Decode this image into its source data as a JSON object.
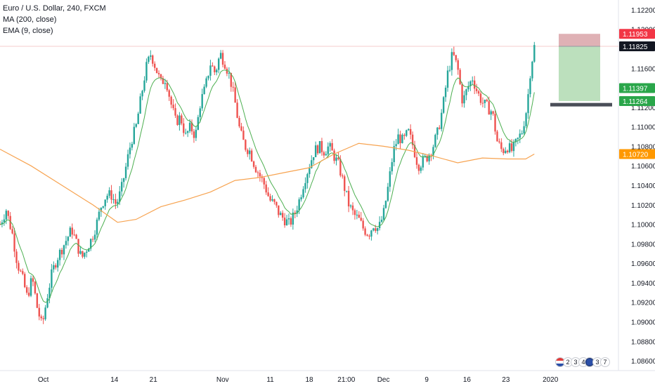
{
  "legend": {
    "symbol": "Euro / U.S. Dollar, 240, FXCM",
    "ma": "MA (200, close)",
    "ema": "EMA (9, close)"
  },
  "colors": {
    "up": "#26a69a",
    "down": "#ef5350",
    "ma": "#f7a350",
    "ema": "#4caf50",
    "stop_zone": "#d9a3a8",
    "target_zone": "#a5d6a7",
    "price_line": "#e57373"
  },
  "events": {
    "group1": [
      "2",
      "3",
      "4"
    ],
    "group2": [
      "3",
      "7"
    ]
  },
  "chart_data": {
    "type": "candlestick",
    "title": "Euro / U.S. Dollar, 240, FXCM",
    "ylim": [
      1.085,
      1.123
    ],
    "y_ticks": [
      "1.12200",
      "1.12000",
      "1.11600",
      "1.11400",
      "1.11200",
      "1.11000",
      "1.10800",
      "1.10600",
      "1.10400",
      "1.10200",
      "1.10000",
      "1.09800",
      "1.09600",
      "1.09400",
      "1.09200",
      "1.09000",
      "1.08800",
      "1.08600"
    ],
    "x_ticks": [
      {
        "label": "Oct",
        "t": 0.07
      },
      {
        "label": "14",
        "t": 0.185
      },
      {
        "label": "21",
        "t": 0.248
      },
      {
        "label": "Nov",
        "t": 0.36
      },
      {
        "label": "11",
        "t": 0.437
      },
      {
        "label": "18",
        "t": 0.5
      },
      {
        "label": "21:00",
        "t": 0.56
      },
      {
        "label": "Dec",
        "t": 0.62
      },
      {
        "label": "9",
        "t": 0.69
      },
      {
        "label": "16",
        "t": 0.755
      },
      {
        "label": "23",
        "t": 0.818
      },
      {
        "label": "2020",
        "t": 0.89
      }
    ],
    "price_labels": [
      {
        "value": "1.11953",
        "color": "#f23645",
        "y": 1.11953
      },
      {
        "value": "1.11825",
        "color": "#131722",
        "y": 1.11825
      },
      {
        "value": "1.11397",
        "color": "#2aa64a",
        "y": 1.11397
      },
      {
        "value": "1.11264",
        "color": "#2aa64a",
        "y": 1.11264
      },
      {
        "value": "1.10720",
        "color": "#ff9800",
        "y": 1.1072
      }
    ],
    "current_price": 1.11825,
    "trade": {
      "entry": 1.11825,
      "stop": 1.11953,
      "target": 1.11264,
      "support": 1.1123
    },
    "path": [
      [
        0.0,
        1.1
      ],
      [
        0.01,
        1.1015
      ],
      [
        0.02,
        1.099
      ],
      [
        0.028,
        1.096
      ],
      [
        0.036,
        1.0945
      ],
      [
        0.044,
        1.0925
      ],
      [
        0.052,
        1.0945
      ],
      [
        0.06,
        1.0915
      ],
      [
        0.068,
        1.0895
      ],
      [
        0.076,
        1.0925
      ],
      [
        0.084,
        1.095
      ],
      [
        0.092,
        1.0965
      ],
      [
        0.1,
        1.0975
      ],
      [
        0.108,
        1.0985
      ],
      [
        0.116,
        1.0995
      ],
      [
        0.124,
        1.098
      ],
      [
        0.132,
        1.0965
      ],
      [
        0.14,
        1.0975
      ],
      [
        0.148,
        1.0985
      ],
      [
        0.156,
        1.1
      ],
      [
        0.164,
        1.102
      ],
      [
        0.172,
        1.103
      ],
      [
        0.18,
        1.103
      ],
      [
        0.188,
        1.102
      ],
      [
        0.196,
        1.1035
      ],
      [
        0.204,
        1.106
      ],
      [
        0.212,
        1.1085
      ],
      [
        0.22,
        1.11
      ],
      [
        0.228,
        1.113
      ],
      [
        0.236,
        1.116
      ],
      [
        0.244,
        1.1175
      ],
      [
        0.252,
        1.116
      ],
      [
        0.26,
        1.1145
      ],
      [
        0.268,
        1.115
      ],
      [
        0.276,
        1.1125
      ],
      [
        0.284,
        1.1105
      ],
      [
        0.292,
        1.111
      ],
      [
        0.3,
        1.109
      ],
      [
        0.308,
        1.11
      ],
      [
        0.316,
        1.109
      ],
      [
        0.324,
        1.1125
      ],
      [
        0.332,
        1.114
      ],
      [
        0.34,
        1.1165
      ],
      [
        0.348,
        1.1155
      ],
      [
        0.356,
        1.1175
      ],
      [
        0.364,
        1.1165
      ],
      [
        0.372,
        1.115
      ],
      [
        0.38,
        1.1125
      ],
      [
        0.388,
        1.1095
      ],
      [
        0.396,
        1.108
      ],
      [
        0.404,
        1.1075
      ],
      [
        0.412,
        1.106
      ],
      [
        0.42,
        1.105
      ],
      [
        0.428,
        1.104
      ],
      [
        0.436,
        1.1025
      ],
      [
        0.444,
        1.102
      ],
      [
        0.452,
        1.101
      ],
      [
        0.46,
        1.1005
      ],
      [
        0.468,
        1.1
      ],
      [
        0.476,
        1.101
      ],
      [
        0.484,
        1.1025
      ],
      [
        0.492,
        1.1045
      ],
      [
        0.5,
        1.106
      ],
      [
        0.508,
        1.1075
      ],
      [
        0.516,
        1.108
      ],
      [
        0.524,
        1.1075
      ],
      [
        0.532,
        1.108
      ],
      [
        0.54,
        1.107
      ],
      [
        0.548,
        1.106
      ],
      [
        0.556,
        1.104
      ],
      [
        0.564,
        1.102
      ],
      [
        0.572,
        1.101
      ],
      [
        0.58,
        1.1005
      ],
      [
        0.588,
        1.0995
      ],
      [
        0.596,
        1.099
      ],
      [
        0.604,
        1.1
      ],
      [
        0.612,
        1.0995
      ],
      [
        0.62,
        1.101
      ],
      [
        0.628,
        1.104
      ],
      [
        0.636,
        1.1075
      ],
      [
        0.644,
        1.109
      ],
      [
        0.652,
        1.1085
      ],
      [
        0.66,
        1.1095
      ],
      [
        0.668,
        1.108
      ],
      [
        0.676,
        1.106
      ],
      [
        0.684,
        1.1065
      ],
      [
        0.692,
        1.107
      ],
      [
        0.7,
        1.108
      ],
      [
        0.708,
        1.1095
      ],
      [
        0.716,
        1.112
      ],
      [
        0.724,
        1.1155
      ],
      [
        0.732,
        1.1175
      ],
      [
        0.74,
        1.116
      ],
      [
        0.748,
        1.1125
      ],
      [
        0.756,
        1.114
      ],
      [
        0.764,
        1.115
      ],
      [
        0.772,
        1.1135
      ],
      [
        0.78,
        1.1125
      ],
      [
        0.788,
        1.112
      ],
      [
        0.796,
        1.1115
      ],
      [
        0.804,
        1.1085
      ],
      [
        0.812,
        1.1075
      ],
      [
        0.82,
        1.108
      ],
      [
        0.828,
        1.1075
      ],
      [
        0.836,
        1.1085
      ],
      [
        0.844,
        1.1095
      ],
      [
        0.852,
        1.112
      ],
      [
        0.858,
        1.116
      ],
      [
        0.864,
        1.1182
      ]
    ],
    "ma_path": [
      [
        0.0,
        1.1077
      ],
      [
        0.05,
        1.106
      ],
      [
        0.1,
        1.104
      ],
      [
        0.15,
        1.102
      ],
      [
        0.19,
        1.1002
      ],
      [
        0.22,
        1.1005
      ],
      [
        0.26,
        1.1018
      ],
      [
        0.3,
        1.1025
      ],
      [
        0.34,
        1.1033
      ],
      [
        0.38,
        1.1045
      ],
      [
        0.42,
        1.1048
      ],
      [
        0.46,
        1.1053
      ],
      [
        0.5,
        1.1058
      ],
      [
        0.54,
        1.1072
      ],
      [
        0.58,
        1.1083
      ],
      [
        0.62,
        1.108
      ],
      [
        0.66,
        1.1076
      ],
      [
        0.7,
        1.107
      ],
      [
        0.74,
        1.1063
      ],
      [
        0.78,
        1.1068
      ],
      [
        0.82,
        1.1067
      ],
      [
        0.85,
        1.1067
      ],
      [
        0.864,
        1.1072
      ]
    ]
  }
}
